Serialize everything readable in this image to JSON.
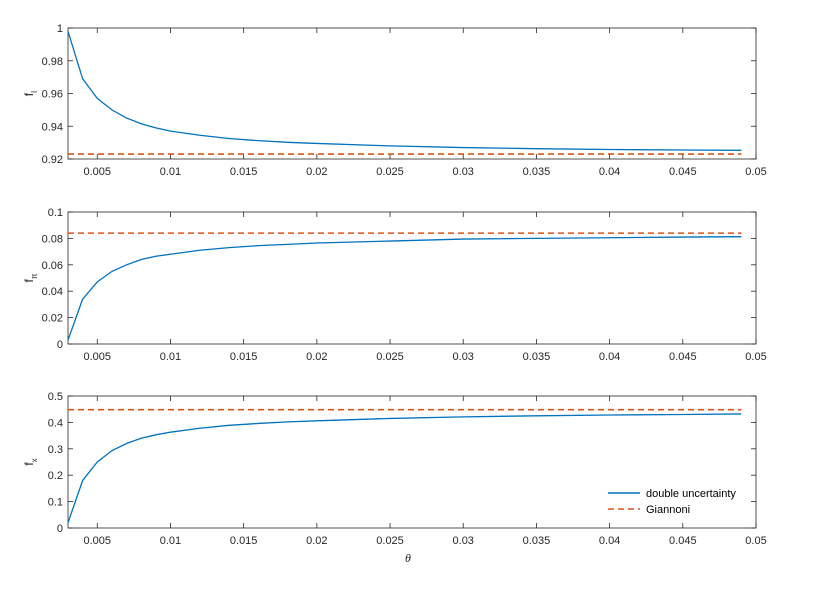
{
  "colors": {
    "series_blue": "#0072BD",
    "series_orange": "#D95319",
    "axis": "#262626",
    "background": "#ffffff"
  },
  "legend": {
    "placement": "bottom-right",
    "entries": [
      "double uncertainty",
      "Giannoni"
    ]
  },
  "chart_data": [
    {
      "type": "line",
      "xlabel": "",
      "ylabel": "f",
      "ylabel_subscript": "I",
      "xlim": [
        0.003,
        0.05
      ],
      "ylim": [
        0.92,
        1.0
      ],
      "xticks": [
        0.005,
        0.01,
        0.015,
        0.02,
        0.025,
        0.03,
        0.035,
        0.04,
        0.045,
        0.05
      ],
      "xtick_labels": [
        "0.005",
        "0.01",
        "0.015",
        "0.02",
        "0.025",
        "0.03",
        "0.035",
        "0.04",
        "0.045",
        "0.05"
      ],
      "yticks": [
        0.92,
        0.94,
        0.96,
        0.98,
        1.0
      ],
      "ytick_labels": [
        "0.92",
        "0.94",
        "0.96",
        "0.98",
        "1"
      ],
      "grid": false,
      "series": [
        {
          "name": "double uncertainty",
          "style": "solid",
          "color": "#0072BD",
          "x": [
            0.003,
            0.004,
            0.005,
            0.006,
            0.007,
            0.008,
            0.009,
            0.01,
            0.012,
            0.014,
            0.016,
            0.018,
            0.02,
            0.025,
            0.03,
            0.035,
            0.04,
            0.045,
            0.049
          ],
          "y": [
            0.998,
            0.969,
            0.957,
            0.95,
            0.945,
            0.9415,
            0.939,
            0.937,
            0.9345,
            0.9325,
            0.9312,
            0.9302,
            0.9295,
            0.928,
            0.927,
            0.9263,
            0.9258,
            0.9255,
            0.9253
          ]
        },
        {
          "name": "Giannoni",
          "style": "dashed",
          "color": "#D95319",
          "x": [
            0.003,
            0.049
          ],
          "y": [
            0.923,
            0.923
          ]
        }
      ]
    },
    {
      "type": "line",
      "xlabel": "",
      "ylabel": "f",
      "ylabel_subscript": "π",
      "xlim": [
        0.003,
        0.05
      ],
      "ylim": [
        0,
        0.1
      ],
      "xticks": [
        0.005,
        0.01,
        0.015,
        0.02,
        0.025,
        0.03,
        0.035,
        0.04,
        0.045,
        0.05
      ],
      "xtick_labels": [
        "0.005",
        "0.01",
        "0.015",
        "0.02",
        "0.025",
        "0.03",
        "0.035",
        "0.04",
        "0.045",
        "0.05"
      ],
      "yticks": [
        0,
        0.02,
        0.04,
        0.06,
        0.08,
        0.1
      ],
      "ytick_labels": [
        "0",
        "0.02",
        "0.04",
        "0.06",
        "0.08",
        "0.1"
      ],
      "grid": false,
      "series": [
        {
          "name": "double uncertainty",
          "style": "solid",
          "color": "#0072BD",
          "x": [
            0.003,
            0.004,
            0.005,
            0.006,
            0.007,
            0.008,
            0.009,
            0.01,
            0.012,
            0.014,
            0.016,
            0.018,
            0.02,
            0.025,
            0.03,
            0.035,
            0.04,
            0.045,
            0.049
          ],
          "y": [
            0.003,
            0.034,
            0.047,
            0.055,
            0.06,
            0.064,
            0.0665,
            0.068,
            0.071,
            0.073,
            0.0745,
            0.0755,
            0.0765,
            0.078,
            0.0795,
            0.08,
            0.0805,
            0.081,
            0.0813
          ]
        },
        {
          "name": "Giannoni",
          "style": "dashed",
          "color": "#D95319",
          "x": [
            0.003,
            0.049
          ],
          "y": [
            0.084,
            0.084
          ]
        }
      ]
    },
    {
      "type": "line",
      "xlabel": "θ",
      "ylabel": "f",
      "ylabel_subscript": "x",
      "xlim": [
        0.003,
        0.05
      ],
      "ylim": [
        0,
        0.5
      ],
      "xticks": [
        0.005,
        0.01,
        0.015,
        0.02,
        0.025,
        0.03,
        0.035,
        0.04,
        0.045,
        0.05
      ],
      "xtick_labels": [
        "0.005",
        "0.01",
        "0.015",
        "0.02",
        "0.025",
        "0.03",
        "0.035",
        "0.04",
        "0.045",
        "0.05"
      ],
      "yticks": [
        0,
        0.1,
        0.2,
        0.3,
        0.4,
        0.5
      ],
      "ytick_labels": [
        "0",
        "0.1",
        "0.2",
        "0.3",
        "0.4",
        "0.5"
      ],
      "grid": false,
      "series": [
        {
          "name": "double uncertainty",
          "style": "solid",
          "color": "#0072BD",
          "x": [
            0.003,
            0.004,
            0.005,
            0.006,
            0.007,
            0.008,
            0.009,
            0.01,
            0.012,
            0.014,
            0.016,
            0.018,
            0.02,
            0.025,
            0.03,
            0.035,
            0.04,
            0.045,
            0.049
          ],
          "y": [
            0.02,
            0.18,
            0.25,
            0.293,
            0.32,
            0.34,
            0.353,
            0.363,
            0.378,
            0.389,
            0.396,
            0.402,
            0.406,
            0.415,
            0.421,
            0.425,
            0.428,
            0.43,
            0.432
          ]
        },
        {
          "name": "Giannoni",
          "style": "dashed",
          "color": "#D95319",
          "x": [
            0.003,
            0.049
          ],
          "y": [
            0.448,
            0.448
          ]
        }
      ]
    }
  ]
}
